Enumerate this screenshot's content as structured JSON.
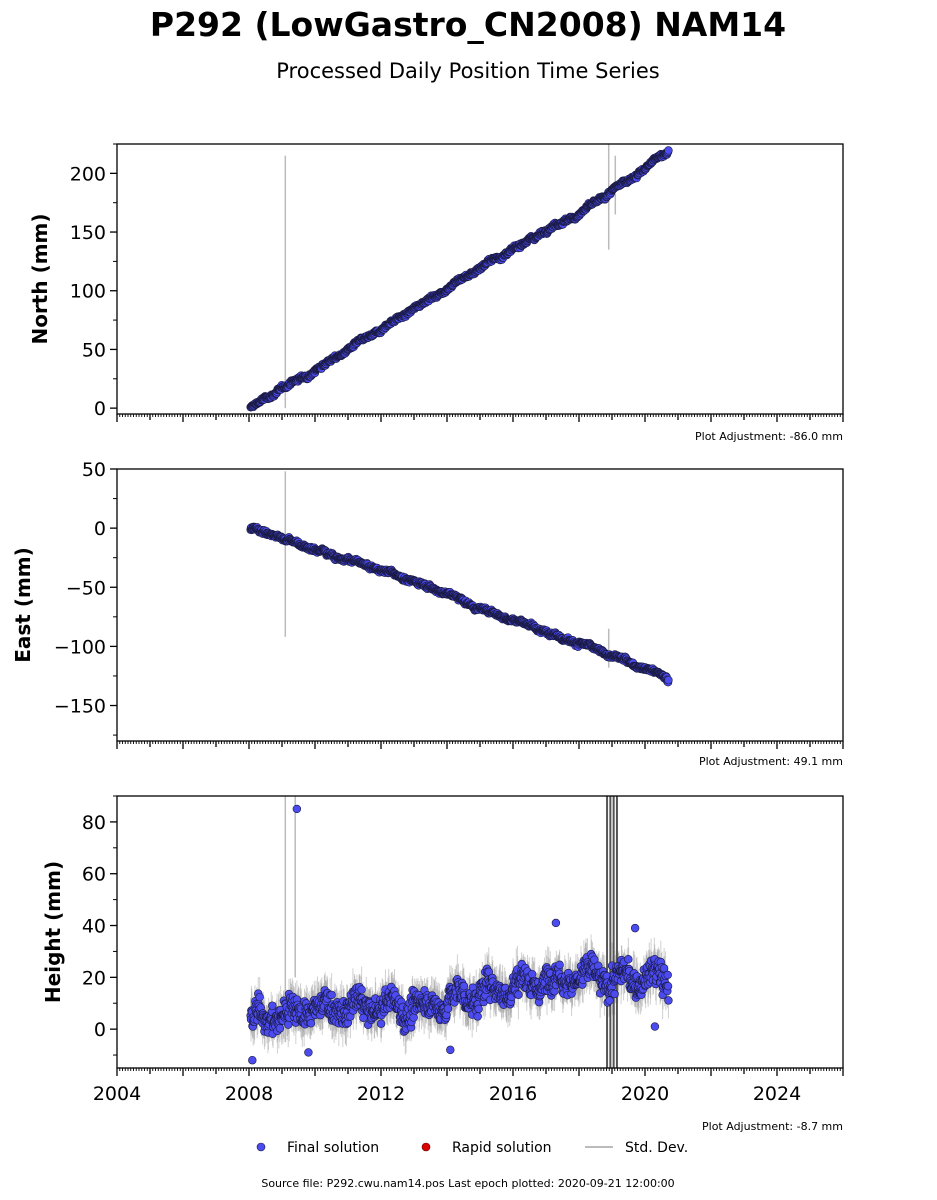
{
  "figure": {
    "title": "P292 (LowGastro_CN2008) NAM14",
    "subtitle": "Processed Daily Position Time Series",
    "source_text": "Source file: P292.cwu.nam14.pos  Last epoch plotted: 2020-09-21 12:00:00"
  },
  "legend": {
    "final_label": "Final solution",
    "rapid_label": "Rapid solution",
    "std_label": "Std. Dev."
  },
  "colors": {
    "final": "#4b4bf0",
    "final_edge": "#1a1a40",
    "rapid": "#dd0000",
    "std": "#bbbbbb",
    "std_dark": "#555555"
  },
  "chart_data": [
    {
      "type": "scatter",
      "ylabel": "North (mm)",
      "adjustment": "Plot Adjustment: -86.0 mm",
      "xlim": [
        2004,
        2026
      ],
      "ylim": [
        -5,
        225
      ],
      "yticks": [
        0,
        50,
        100,
        150,
        200
      ],
      "ytick_labels": [
        "0",
        "50",
        "100",
        "150",
        "200"
      ],
      "start_decimal_year": 2008.05,
      "end_decimal_year": 2020.72,
      "trend_points": [
        [
          2008.05,
          0
        ],
        [
          2009.0,
          17
        ],
        [
          2010.0,
          32
        ],
        [
          2011.0,
          50
        ],
        [
          2012.0,
          67
        ],
        [
          2013.0,
          85
        ],
        [
          2014.0,
          102
        ],
        [
          2015.0,
          120
        ],
        [
          2016.0,
          135
        ],
        [
          2017.0,
          152
        ],
        [
          2018.0,
          165
        ],
        [
          2019.0,
          185
        ],
        [
          2020.0,
          204
        ],
        [
          2020.72,
          220
        ]
      ],
      "scatter_mm": 1.5,
      "std_spikes": [
        [
          2009.1,
          0,
          215
        ],
        [
          2018.9,
          135,
          225
        ],
        [
          2019.1,
          165,
          215
        ]
      ]
    },
    {
      "type": "scatter",
      "ylabel": "East (mm)",
      "adjustment": "Plot Adjustment: 49.1 mm",
      "xlim": [
        2004,
        2026
      ],
      "ylim": [
        -180,
        50
      ],
      "yticks": [
        -150,
        -100,
        -50,
        0,
        50
      ],
      "ytick_labels": [
        "−150",
        "−100",
        "−50",
        "0",
        "50"
      ],
      "start_decimal_year": 2008.05,
      "end_decimal_year": 2020.72,
      "trend_points": [
        [
          2008.05,
          0
        ],
        [
          2009.0,
          -8
        ],
        [
          2010.0,
          -18
        ],
        [
          2011.0,
          -27
        ],
        [
          2012.0,
          -35
        ],
        [
          2013.0,
          -45
        ],
        [
          2014.0,
          -55
        ],
        [
          2015.0,
          -68
        ],
        [
          2016.0,
          -77
        ],
        [
          2017.0,
          -88
        ],
        [
          2018.0,
          -97
        ],
        [
          2019.0,
          -108
        ],
        [
          2020.0,
          -118
        ],
        [
          2020.72,
          -127
        ]
      ],
      "scatter_mm": 1.5,
      "std_spikes": [
        [
          2009.1,
          -92,
          48
        ],
        [
          2018.9,
          -118,
          -85
        ]
      ]
    },
    {
      "type": "scatter",
      "ylabel": "Height (mm)",
      "adjustment": "Plot Adjustment: -8.7 mm",
      "xlim": [
        2004,
        2026
      ],
      "ylim": [
        -15,
        90
      ],
      "yticks": [
        0,
        20,
        40,
        60,
        80
      ],
      "ytick_labels": [
        "0",
        "20",
        "40",
        "60",
        "80"
      ],
      "xticks": [
        2004,
        2008,
        2012,
        2016,
        2020,
        2024
      ],
      "xtick_labels": [
        "2004",
        "2008",
        "2012",
        "2016",
        "2020",
        "2024"
      ],
      "start_decimal_year": 2008.05,
      "end_decimal_year": 2020.72,
      "trend_points": [
        [
          2008.05,
          3
        ],
        [
          2009.0,
          6
        ],
        [
          2010.0,
          8
        ],
        [
          2011.0,
          8
        ],
        [
          2012.0,
          9
        ],
        [
          2013.0,
          8
        ],
        [
          2014.0,
          11
        ],
        [
          2015.0,
          14
        ],
        [
          2016.0,
          17
        ],
        [
          2017.0,
          19
        ],
        [
          2018.0,
          21
        ],
        [
          2019.0,
          19
        ],
        [
          2020.0,
          20
        ],
        [
          2020.72,
          19
        ]
      ],
      "scatter_mm": 5.5,
      "outliers": [
        [
          2009.45,
          85
        ],
        [
          2017.3,
          41
        ],
        [
          2019.7,
          39
        ],
        [
          2009.8,
          -9
        ],
        [
          2008.1,
          -12
        ],
        [
          2014.1,
          -8
        ],
        [
          2020.3,
          1
        ]
      ],
      "std_spikes": [
        [
          2009.1,
          -5,
          90
        ],
        [
          2009.4,
          20,
          90
        ],
        [
          2018.85,
          -15,
          90
        ],
        [
          2018.95,
          -15,
          90
        ],
        [
          2019.05,
          -15,
          90
        ],
        [
          2019.15,
          -15,
          90
        ]
      ]
    }
  ]
}
